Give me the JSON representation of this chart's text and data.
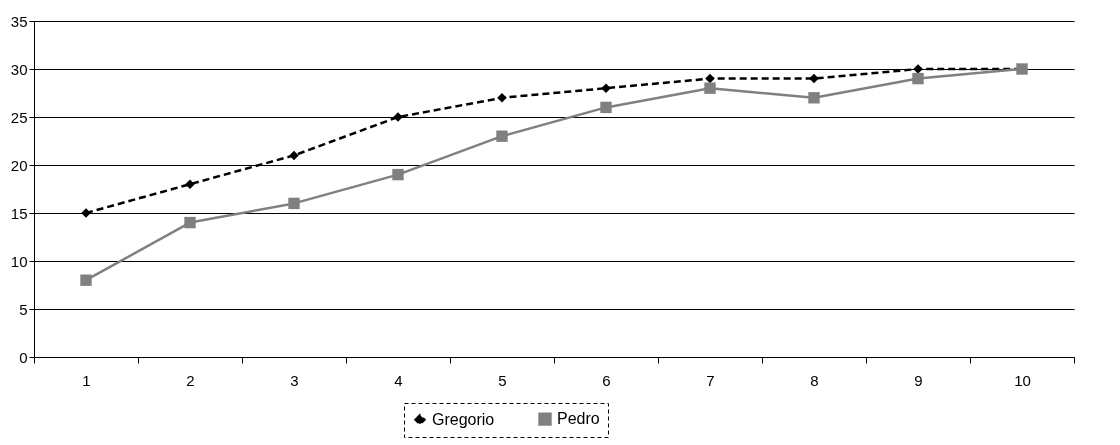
{
  "chart_data": {
    "type": "line",
    "categories": [
      "1",
      "2",
      "3",
      "4",
      "5",
      "6",
      "7",
      "8",
      "9",
      "10"
    ],
    "series": [
      {
        "name": "Gregorio",
        "color": "#000000",
        "marker": "diamond",
        "line_style": "dashed",
        "values": [
          15,
          18,
          21,
          25,
          27,
          28,
          29,
          29,
          30,
          30
        ]
      },
      {
        "name": "Pedro",
        "color": "#808080",
        "marker": "square",
        "line_style": "solid",
        "values": [
          8,
          14,
          16,
          19,
          23,
          26,
          28,
          27,
          29,
          30
        ]
      }
    ],
    "ylim": [
      0,
      35
    ],
    "yticks": [
      0,
      5,
      10,
      15,
      20,
      25,
      30,
      35
    ],
    "grid": "y",
    "legend": "bottom"
  }
}
